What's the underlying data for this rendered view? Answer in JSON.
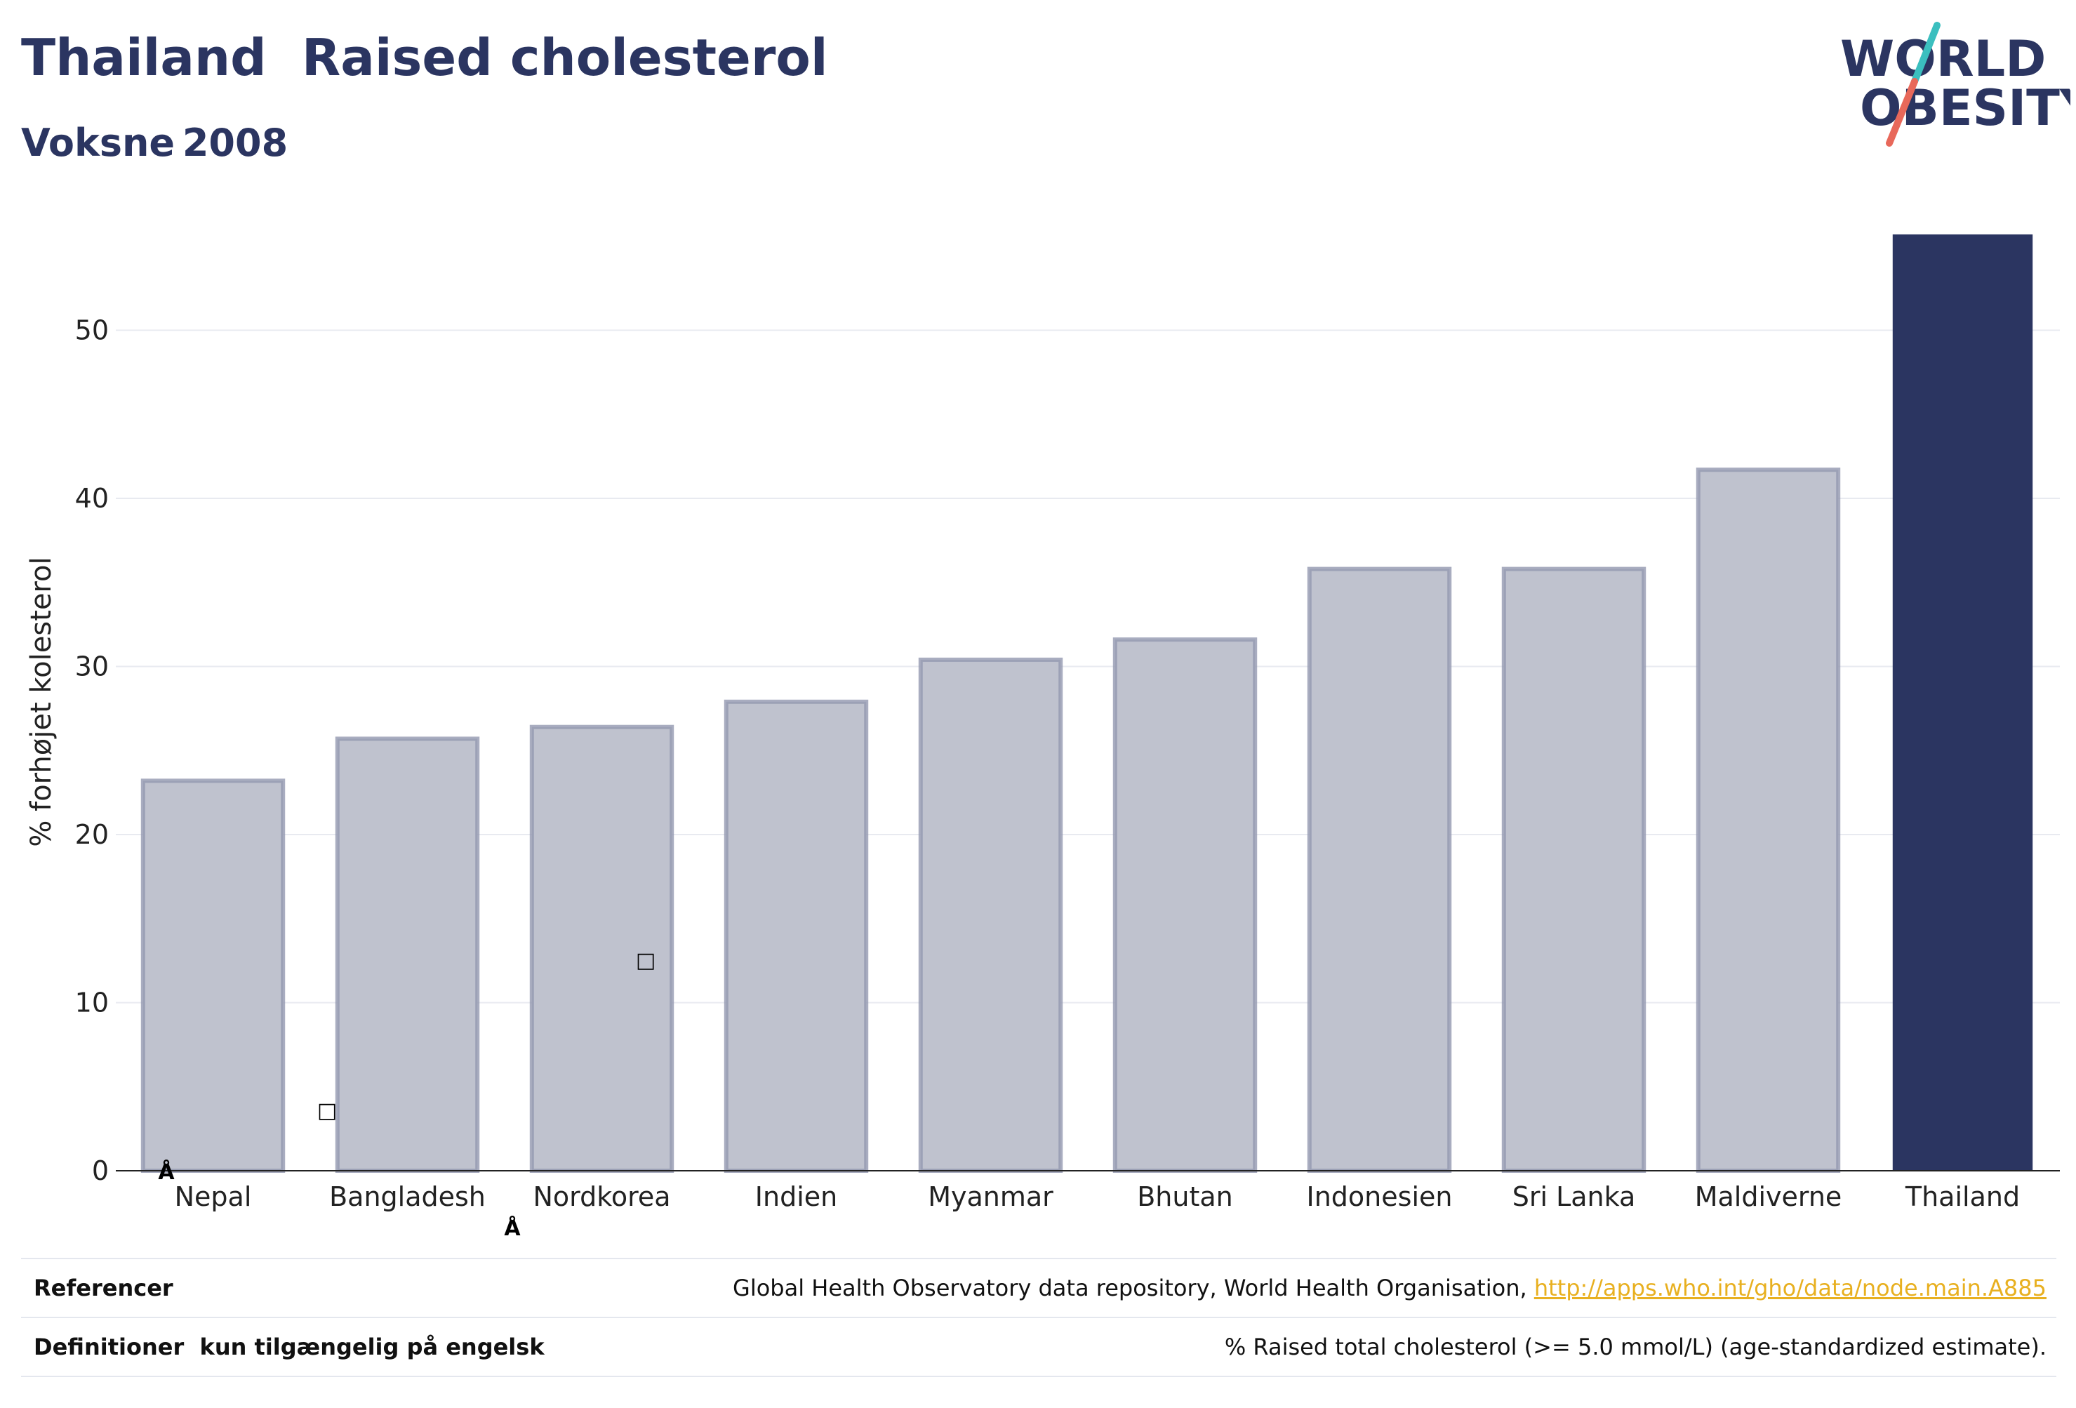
{
  "header": {
    "title": "Thailand  Raised cholesterol",
    "subtitle": "Voksne 2008"
  },
  "logo": {
    "line1": "WORLD",
    "line2": "OBESITY",
    "colors": {
      "text": "#2b3561",
      "slash_teal": "#3bbfbf",
      "slash_coral": "#e8685a"
    }
  },
  "colors": {
    "highlight_bar": "#2b3561",
    "other_bar_fill": "#bfc2ce",
    "other_bar_stroke": "#9498b0",
    "grid": "#e8eaf0",
    "axis": "#222222",
    "link": "#e8b020"
  },
  "chart_data": {
    "type": "bar",
    "ylabel": "% forhøjet kolesterol",
    "xlabel": "",
    "ylim": [
      0,
      57
    ],
    "yticks": [
      0,
      10,
      20,
      30,
      40,
      50
    ],
    "grid": true,
    "categories": [
      "Nepal",
      "Bangladesh",
      "Nordkorea",
      "Indien",
      "Myanmar",
      "Bhutan",
      "Indonesien",
      "Sri Lanka",
      "Maldiverne",
      "Thailand"
    ],
    "values": [
      23.2,
      25.7,
      26.4,
      27.9,
      30.4,
      31.6,
      35.8,
      35.8,
      41.7,
      55.7
    ],
    "highlight": "Thailand"
  },
  "stray_glyphs": [
    "Å",
    "□",
    "Å",
    "□"
  ],
  "footer": {
    "references_label": "Referencer",
    "references_text": "Global Health Observatory data repository, World Health Organisation, ",
    "references_link": "http://apps.who.int/gho/data/node.main.A885",
    "definitions_label": "Definitioner  kun tilgængelig på engelsk",
    "definitions_text": "% Raised total cholesterol (>= 5.0 mmol/L) (age-standardized estimate)."
  }
}
